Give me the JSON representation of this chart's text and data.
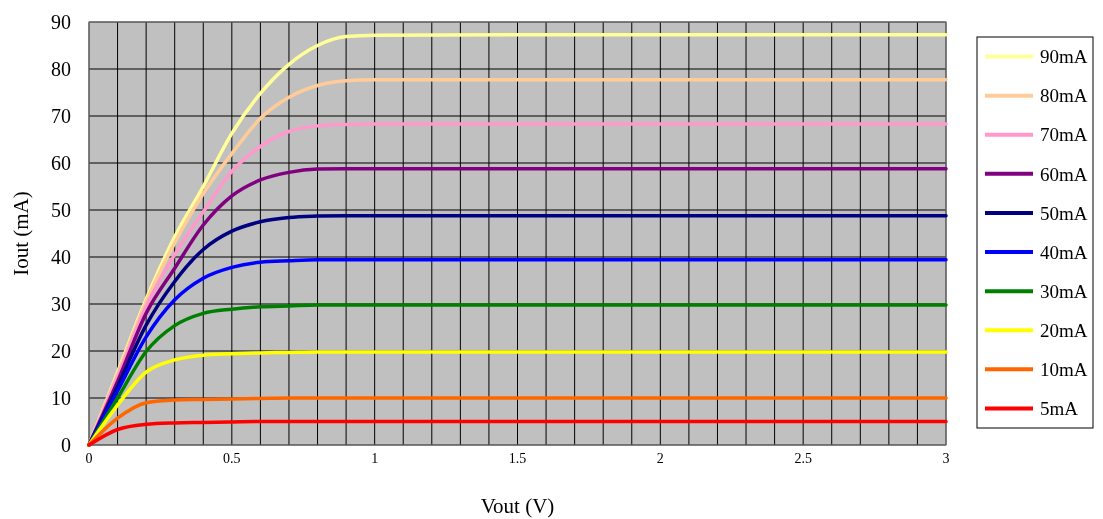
{
  "chart_data": {
    "type": "line",
    "xlabel": "Vout (V)",
    "ylabel": "Iout (mA)",
    "x": [
      0,
      0.1,
      0.2,
      0.3,
      0.4,
      0.5,
      0.6,
      0.7,
      0.8,
      0.9,
      1,
      1.5,
      2,
      2.5,
      3
    ],
    "xlim": [
      0,
      3
    ],
    "xticks": [
      0,
      {
        "value": 0.1,
        "label": null
      },
      {
        "value": 0.2,
        "label": null
      },
      {
        "value": 0.3,
        "label": null
      },
      {
        "value": 0.4,
        "label": null
      },
      0.5,
      {
        "value": 0.6,
        "label": null
      },
      {
        "value": 0.7,
        "label": null
      },
      {
        "value": 0.8,
        "label": null
      },
      {
        "value": 0.9,
        "label": null
      },
      1,
      {
        "value": 1.1,
        "label": null
      },
      {
        "value": 1.2,
        "label": null
      },
      {
        "value": 1.3,
        "label": null
      },
      {
        "value": 1.4,
        "label": null
      },
      1.5,
      {
        "value": 1.6,
        "label": null
      },
      {
        "value": 1.7,
        "label": null
      },
      {
        "value": 1.8,
        "label": null
      },
      {
        "value": 1.9,
        "label": null
      },
      2,
      {
        "value": 2.1,
        "label": null
      },
      {
        "value": 2.2,
        "label": null
      },
      {
        "value": 2.3,
        "label": null
      },
      {
        "value": 2.4,
        "label": null
      },
      2.5,
      {
        "value": 2.6,
        "label": null
      },
      {
        "value": 2.7,
        "label": null
      },
      {
        "value": 2.8,
        "label": null
      },
      {
        "value": 2.9,
        "label": null
      },
      3
    ],
    "ylim": [
      0,
      90
    ],
    "yticks": [
      0,
      10,
      20,
      30,
      40,
      50,
      60,
      70,
      80,
      90
    ],
    "grid": true,
    "legend": "right",
    "marker": "none",
    "line_style": "solid",
    "series": [
      {
        "name": "90mA",
        "color": "#ffff99",
        "values": [
          0,
          15.5,
          31,
          44.3,
          55,
          66.3,
          74.8,
          81,
          85,
          86.9,
          87.2,
          87.3,
          87.3,
          87.3,
          87.3
        ]
      },
      {
        "name": "80mA",
        "color": "#ffcc99",
        "values": [
          0,
          15.2,
          30.5,
          43,
          53.5,
          62,
          69.5,
          74,
          76.5,
          77.5,
          77.7,
          77.7,
          77.7,
          77.7,
          77.7
        ]
      },
      {
        "name": "70mA",
        "color": "#ff99cc",
        "values": [
          0,
          14.5,
          29.5,
          40.5,
          49.6,
          58.2,
          63.5,
          66.7,
          67.9,
          68.2,
          68.3,
          68.3,
          68.3,
          68.3,
          68.3
        ]
      },
      {
        "name": "60mA",
        "color": "#800080",
        "values": [
          0,
          13.5,
          28,
          37.6,
          46.8,
          53,
          56.4,
          58,
          58.7,
          58.8,
          58.8,
          58.8,
          58.8,
          58.8,
          58.8
        ]
      },
      {
        "name": "50mA",
        "color": "#000080",
        "values": [
          0,
          12.5,
          25.5,
          34.8,
          41.6,
          45.5,
          47.5,
          48.4,
          48.7,
          48.8,
          48.8,
          48.8,
          48.8,
          48.8,
          48.8
        ]
      },
      {
        "name": "40mA",
        "color": "#0000ff",
        "values": [
          0,
          11.5,
          23,
          30.9,
          35.5,
          37.8,
          38.9,
          39.2,
          39.4,
          39.4,
          39.4,
          39.4,
          39.4,
          39.4,
          39.4
        ]
      },
      {
        "name": "30mA",
        "color": "#008000",
        "values": [
          0,
          10,
          19.9,
          25.4,
          28,
          28.9,
          29.4,
          29.6,
          29.8,
          29.8,
          29.8,
          29.8,
          29.8,
          29.8,
          29.8
        ]
      },
      {
        "name": "20mA",
        "color": "#ffff00",
        "values": [
          0,
          8.5,
          15.5,
          18.1,
          19.1,
          19.4,
          19.6,
          19.7,
          19.8,
          19.8,
          19.8,
          19.8,
          19.8,
          19.8,
          19.8
        ]
      },
      {
        "name": "10mA",
        "color": "#ff6600",
        "values": [
          0,
          5.7,
          9,
          9.6,
          9.7,
          9.8,
          9.9,
          10,
          10,
          10,
          10,
          10,
          10,
          10,
          10
        ]
      },
      {
        "name": "5mA",
        "color": "#ff0000",
        "values": [
          0,
          3.3,
          4.4,
          4.7,
          4.8,
          4.9,
          5,
          5,
          5,
          5,
          5,
          5,
          5,
          5,
          5
        ]
      }
    ]
  }
}
